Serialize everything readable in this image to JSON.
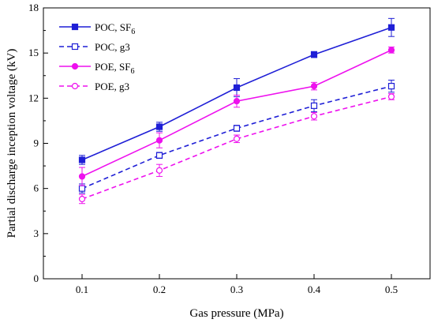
{
  "chart_data": {
    "type": "line",
    "title": "",
    "xlabel": "Gas pressure (MPa)",
    "ylabel": "Partial discharge inception voltage (kV)",
    "x": [
      0.1,
      0.2,
      0.3,
      0.4,
      0.5
    ],
    "x_tick_labels": [
      "0.1",
      "0.2",
      "0.3",
      "0.4",
      "0.5"
    ],
    "xlim": [
      0.05,
      0.55
    ],
    "ylim": [
      0,
      18
    ],
    "y_ticks": [
      0,
      3,
      6,
      9,
      12,
      15,
      18
    ],
    "y_tick_labels": [
      "0",
      "3",
      "6",
      "9",
      "12",
      "15",
      "18"
    ],
    "grid": false,
    "legend_position": "top-left",
    "series": [
      {
        "name": "POC, SF6",
        "legend_main": "POC, SF",
        "legend_sub": "6",
        "color": "#1f1fd6",
        "dash": "solid",
        "marker": "square-filled",
        "values": [
          7.9,
          10.1,
          12.7,
          14.9,
          16.7
        ],
        "errors": [
          0.3,
          0.3,
          0.6,
          0.2,
          0.6
        ]
      },
      {
        "name": "POC, g3",
        "legend_main": "POC, g3",
        "legend_sub": "",
        "color": "#1f1fd6",
        "dash": "dashed",
        "marker": "square-open",
        "values": [
          6.0,
          8.2,
          10.0,
          11.5,
          12.8
        ],
        "errors": [
          0.3,
          0.2,
          0.2,
          0.4,
          0.4
        ]
      },
      {
        "name": "POE, SF6",
        "legend_main": "POE, SF",
        "legend_sub": "6",
        "color": "#ee11ee",
        "dash": "solid",
        "marker": "circle-filled",
        "values": [
          6.8,
          9.2,
          11.8,
          12.8,
          15.2
        ],
        "errors": [
          0.6,
          0.5,
          0.4,
          0.25,
          0.2
        ]
      },
      {
        "name": "POE, g3",
        "legend_main": "POE, g3",
        "legend_sub": "",
        "color": "#ee11ee",
        "dash": "dashed",
        "marker": "circle-open",
        "values": [
          5.3,
          7.2,
          9.3,
          10.8,
          12.1
        ],
        "errors": [
          0.3,
          0.4,
          0.25,
          0.25,
          0.2
        ]
      }
    ]
  }
}
